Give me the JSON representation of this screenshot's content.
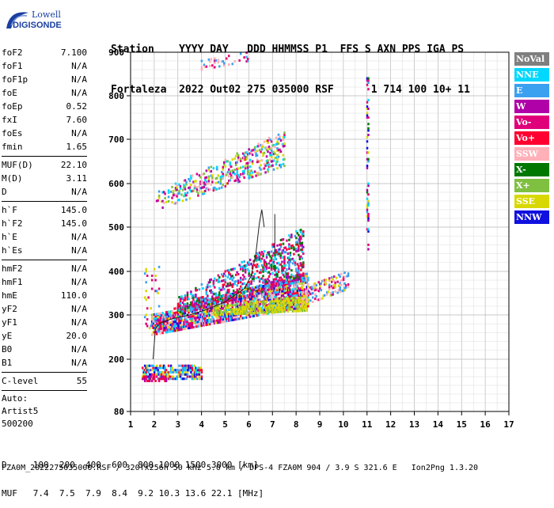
{
  "logo": {
    "line1": "Lowell",
    "line2": "DIGISONDE"
  },
  "header": {
    "line1": "Station    YYYY DAY   DDD HHMMSS P1  FFS S AXN PPS IGA PS",
    "line2": "Fortaleza  2022 Out02 275 035000 RSF      1 714 100 10+ 11"
  },
  "params": {
    "group1": [
      {
        "name": "foF2",
        "value": "7.100"
      },
      {
        "name": "foF1",
        "value": "N/A"
      },
      {
        "name": "foF1p",
        "value": "N/A"
      },
      {
        "name": "foE",
        "value": "N/A"
      },
      {
        "name": "foEp",
        "value": "0.52"
      },
      {
        "name": "fxI",
        "value": "7.60"
      },
      {
        "name": "foEs",
        "value": "N/A"
      },
      {
        "name": "fmin",
        "value": "1.65"
      }
    ],
    "group2": [
      {
        "name": "MUF(D)",
        "value": "22.10"
      },
      {
        "name": "M(D)",
        "value": "3.11"
      },
      {
        "name": "D",
        "value": "N/A"
      }
    ],
    "group3": [
      {
        "name": "h`F",
        "value": "145.0"
      },
      {
        "name": "h`F2",
        "value": "145.0"
      },
      {
        "name": "h`E",
        "value": "N/A"
      },
      {
        "name": "h`Es",
        "value": "N/A"
      }
    ],
    "group4": [
      {
        "name": "hmF2",
        "value": "N/A"
      },
      {
        "name": "hmF1",
        "value": "N/A"
      },
      {
        "name": "hmE",
        "value": "110.0"
      },
      {
        "name": "yF2",
        "value": "N/A"
      },
      {
        "name": "yF1",
        "value": "N/A"
      },
      {
        "name": "yE",
        "value": "20.0"
      },
      {
        "name": "B0",
        "value": "N/A"
      },
      {
        "name": "B1",
        "value": "N/A"
      }
    ],
    "group5": [
      {
        "name": "C-level",
        "value": "55"
      }
    ],
    "auto": [
      "Auto:",
      "Artist5",
      "500200"
    ]
  },
  "legend": [
    {
      "label": "NoVal",
      "color": "#7f7f7f"
    },
    {
      "label": "NNE",
      "color": "#00d8ff"
    },
    {
      "label": "E",
      "color": "#3aa0f0"
    },
    {
      "label": "W",
      "color": "#b000a8"
    },
    {
      "label": "Vo-",
      "color": "#e0007a"
    },
    {
      "label": "Vo+",
      "color": "#ff0030"
    },
    {
      "label": "SSW",
      "color": "#ffb0b8"
    },
    {
      "label": "X-",
      "color": "#007800"
    },
    {
      "label": "X+",
      "color": "#80c040"
    },
    {
      "label": "SSE",
      "color": "#d8d800"
    },
    {
      "label": "NNW",
      "color": "#1010e0"
    }
  ],
  "footer": {
    "d_row": "D     100  200  400  600  800 1000 1500 3000 [km]",
    "muf_row": "MUF   7.4  7.5  7.9  8.4  9.2 10.3 13.6 22.1 [MHz]",
    "info": "FZA0M_2022275035000.RSF / 320fx256h 50 kHz 5.0 km / DPS-4 FZA0M 904 / 3.9 S 321.6 E   Ion2Png 1.3.20"
  },
  "chart_data": {
    "type": "scatter",
    "xlim": [
      1,
      17
    ],
    "ylim": [
      80,
      900
    ],
    "x_ticks": [
      "1",
      "2",
      "3",
      "4",
      "5",
      "6",
      "7",
      "8",
      "9",
      "10",
      "11",
      "12",
      "13",
      "14",
      "15",
      "16",
      "17"
    ],
    "y_ticks": [
      "80",
      "200",
      "300",
      "400",
      "500",
      "600",
      "700",
      "800",
      "900"
    ],
    "grid": true,
    "legend_position": "right",
    "clusters": [
      {
        "name": "E-trace",
        "x_range": [
          1.5,
          4.0
        ],
        "y_range": [
          155,
          185
        ],
        "density": 0.55,
        "palette": [
          "#3aa0f0",
          "#00d8ff",
          "#1010e0",
          "#d8d800",
          "#ff0030"
        ]
      },
      {
        "name": "E-trace-low",
        "x_range": [
          1.5,
          2.5
        ],
        "y_range": [
          150,
          162
        ],
        "density": 0.6,
        "palette": [
          "#ff0030",
          "#e0007a",
          "#b000a8"
        ]
      },
      {
        "name": "F-trace",
        "x_range": [
          1.9,
          8.5
        ],
        "y_range_start": [
          255,
          300
        ],
        "y_range_end": [
          320,
          400
        ],
        "density": 0.75,
        "palette": [
          "#e0007a",
          "#ff0030",
          "#b000a8",
          "#3aa0f0",
          "#00d8ff",
          "#ffb0b8",
          "#1010e0",
          "#d8d800"
        ]
      },
      {
        "name": "F-upper",
        "x_range": [
          3.0,
          8.3
        ],
        "y_range_start": [
          300,
          340
        ],
        "y_range_end": [
          380,
          500
        ],
        "density": 0.35,
        "palette": [
          "#e0007a",
          "#b000a8",
          "#3aa0f0",
          "#ff0030",
          "#00d8ff",
          "#007800"
        ]
      },
      {
        "name": "SSE-band",
        "x_range": [
          4.5,
          8.5
        ],
        "y_range_start": [
          300,
          320
        ],
        "y_range_end": [
          310,
          345
        ],
        "density": 0.55,
        "palette": [
          "#d8d800",
          "#d8d800",
          "#80c040"
        ]
      },
      {
        "name": "F-tail",
        "x_range": [
          8.2,
          10.2
        ],
        "y_range_start": [
          320,
          360
        ],
        "y_range_end": [
          360,
          400
        ],
        "density": 0.3,
        "palette": [
          "#d8d800",
          "#ffb0b8",
          "#e0007a",
          "#3aa0f0"
        ]
      },
      {
        "name": "second-hop",
        "x_range": [
          2.1,
          7.5
        ],
        "y_range_start": [
          540,
          580
        ],
        "y_range_end": [
          640,
          720
        ],
        "density": 0.3,
        "palette": [
          "#e0007a",
          "#b000a8",
          "#3aa0f0",
          "#ffb0b8",
          "#d8d800",
          "#00d8ff",
          "#80c040"
        ]
      },
      {
        "name": "third-hop",
        "x_range": [
          4.0,
          6.0
        ],
        "y_range_start": [
          860,
          880
        ],
        "y_range_end": [
          880,
          900
        ],
        "density": 0.15,
        "palette": [
          "#ffb0b8",
          "#3aa0f0",
          "#e0007a"
        ]
      },
      {
        "name": "spike-11MHz",
        "x_range": [
          11.0,
          11.05
        ],
        "y_range": [
          450,
          840
        ],
        "density": 0.35,
        "palette": [
          "#1010e0",
          "#3aa0f0",
          "#b000a8",
          "#d8d800",
          "#007800",
          "#00d8ff",
          "#e0007a"
        ]
      },
      {
        "name": "left-scatter",
        "x_range": [
          1.6,
          2.2
        ],
        "y_range": [
          270,
          420
        ],
        "density": 0.1,
        "palette": [
          "#3aa0f0",
          "#e0007a",
          "#d8d800"
        ]
      }
    ],
    "profile_curve": {
      "x": [
        1.95,
        2.05,
        2.3,
        2.8,
        3.5,
        4.2,
        5.0,
        5.8,
        6.1,
        6.3,
        6.45,
        6.55,
        6.65
      ],
      "y": [
        200,
        270,
        283,
        292,
        300,
        312,
        330,
        360,
        390,
        440,
        510,
        540,
        500
      ]
    },
    "vertical_line": {
      "x": 7.1,
      "y": [
        440,
        530
      ]
    }
  }
}
